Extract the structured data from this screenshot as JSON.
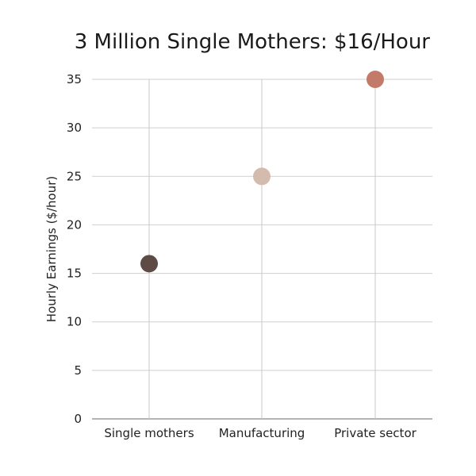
{
  "chart_data": {
    "type": "scatter",
    "title": "3 Million Single Mothers: $16/Hour",
    "xlabel": "",
    "ylabel": "Hourly Earnings ($/hour)",
    "categories": [
      "Single mothers",
      "Manufacturing",
      "Private sector"
    ],
    "values": [
      16,
      25,
      35
    ],
    "colors": [
      "#5e4b45",
      "#d3bcad",
      "#c47a69"
    ],
    "ylim": [
      0,
      35
    ],
    "yticks": [
      0,
      5,
      10,
      15,
      20,
      25,
      30,
      35
    ],
    "grid": true,
    "legend": "none"
  }
}
